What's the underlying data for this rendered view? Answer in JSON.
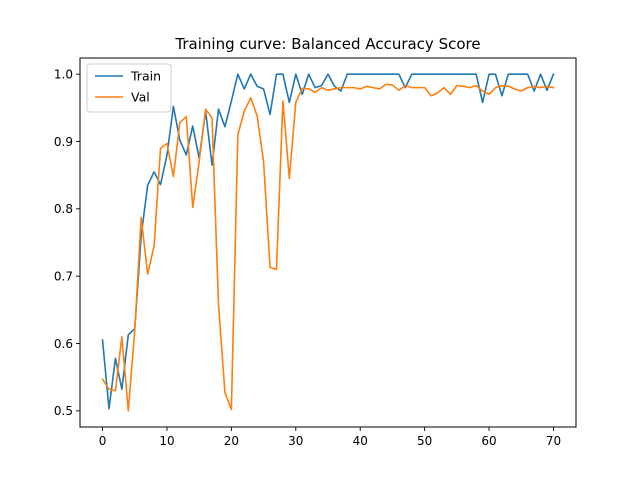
{
  "chart_data": {
    "type": "line",
    "title": "Training curve: Balanced Accuracy Score",
    "xlabel": "",
    "ylabel": "",
    "xlim": [
      -3.5,
      73.5
    ],
    "ylim": [
      0.476,
      1.024
    ],
    "xticks": [
      0,
      10,
      20,
      30,
      40,
      50,
      60,
      70
    ],
    "yticks": [
      0.5,
      0.6,
      0.7,
      0.8,
      0.9,
      1.0
    ],
    "xtick_labels": [
      "0",
      "10",
      "20",
      "30",
      "40",
      "50",
      "60",
      "70"
    ],
    "ytick_labels": [
      "0.5",
      "0.6",
      "0.7",
      "0.8",
      "0.9",
      "1.0"
    ],
    "grid": false,
    "legend": "top-left",
    "x": [
      0,
      1,
      2,
      3,
      4,
      5,
      6,
      7,
      8,
      9,
      10,
      11,
      12,
      13,
      14,
      15,
      16,
      17,
      18,
      19,
      20,
      21,
      22,
      23,
      24,
      25,
      26,
      27,
      28,
      29,
      30,
      31,
      32,
      33,
      34,
      35,
      36,
      37,
      38,
      39,
      40,
      41,
      42,
      43,
      44,
      45,
      46,
      47,
      48,
      49,
      50,
      51,
      52,
      53,
      54,
      55,
      56,
      57,
      58,
      59,
      60,
      61,
      62,
      63,
      64,
      65,
      66,
      67,
      68,
      69,
      70
    ],
    "series": [
      {
        "name": "Train",
        "color": "#1f77b4",
        "values": [
          0.605,
          0.503,
          0.578,
          0.532,
          0.613,
          0.622,
          0.76,
          0.835,
          0.855,
          0.836,
          0.88,
          0.952,
          0.902,
          0.88,
          0.923,
          0.875,
          0.945,
          0.865,
          0.948,
          0.922,
          0.96,
          1.0,
          0.978,
          1.0,
          0.982,
          0.978,
          0.94,
          1.0,
          1.0,
          0.958,
          1.0,
          0.97,
          1.0,
          0.98,
          0.983,
          1.0,
          0.982,
          0.975,
          1.0,
          1.0,
          1.0,
          1.0,
          1.0,
          1.0,
          1.0,
          1.0,
          1.0,
          0.98,
          1.0,
          1.0,
          1.0,
          1.0,
          1.0,
          1.0,
          1.0,
          1.0,
          1.0,
          1.0,
          1.0,
          0.958,
          1.0,
          1.0,
          0.968,
          1.0,
          1.0,
          1.0,
          1.0,
          0.975,
          1.0,
          0.976,
          1.0
        ]
      },
      {
        "name": "Val",
        "color": "#ff7f0e",
        "values": [
          0.547,
          0.532,
          0.53,
          0.61,
          0.5,
          0.62,
          0.787,
          0.703,
          0.745,
          0.89,
          0.897,
          0.848,
          0.928,
          0.937,
          0.802,
          0.87,
          0.948,
          0.935,
          0.658,
          0.527,
          0.502,
          0.91,
          0.945,
          0.965,
          0.938,
          0.87,
          0.713,
          0.71,
          0.96,
          0.845,
          0.958,
          0.979,
          0.978,
          0.973,
          0.98,
          0.976,
          0.978,
          0.98,
          0.98,
          0.98,
          0.978,
          0.982,
          0.98,
          0.978,
          0.985,
          0.984,
          0.976,
          0.983,
          0.98,
          0.98,
          0.98,
          0.968,
          0.972,
          0.98,
          0.97,
          0.983,
          0.982,
          0.98,
          0.983,
          0.975,
          0.97,
          0.98,
          0.983,
          0.982,
          0.978,
          0.975,
          0.98,
          0.982,
          0.98,
          0.982,
          0.98
        ]
      }
    ]
  }
}
